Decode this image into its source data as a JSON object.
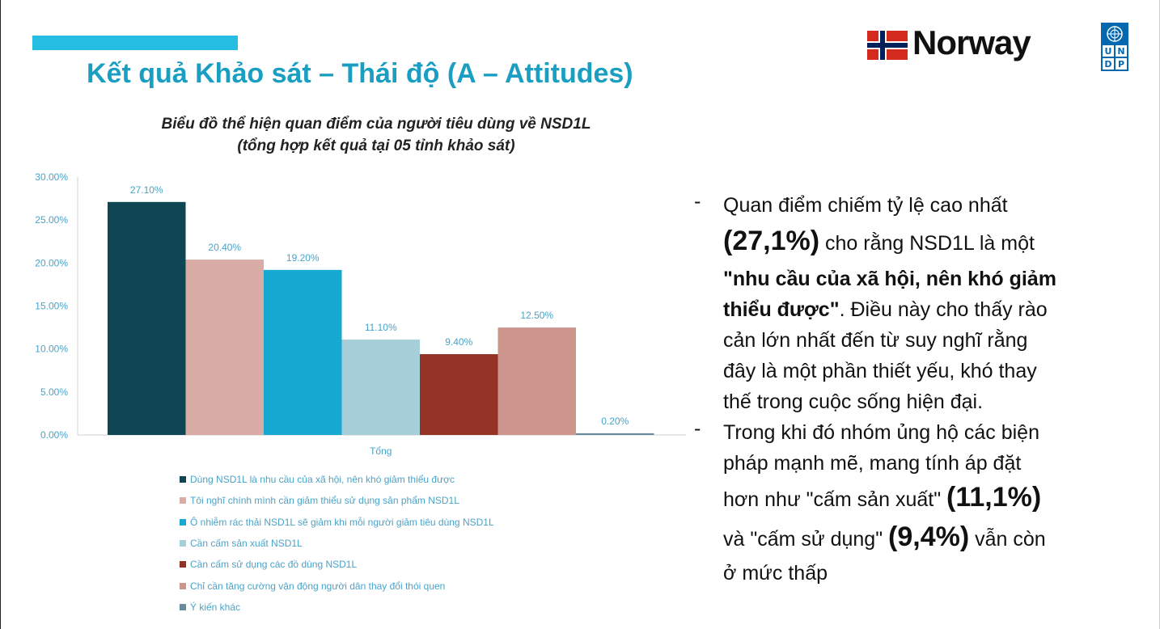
{
  "slide": {
    "title": "Kết quả Khảo sát – Thái độ (A – Attitudes)",
    "accent_color": "#26bde2",
    "title_color": "#1a9fc2"
  },
  "logos": {
    "norway_text": "Norway",
    "undp_letters": [
      "U",
      "N",
      "D",
      "P"
    ]
  },
  "chart_data": {
    "type": "bar",
    "title_line1": "Biểu đồ thể hiện quan điểm của người tiêu dùng về NSD1L",
    "title_line2": "(tổng hợp kết quả tại 05 tỉnh khảo sát)",
    "category": "Tổng",
    "ylim": [
      0,
      30
    ],
    "yticks": [
      0,
      5,
      10,
      15,
      20,
      25,
      30
    ],
    "ytick_labels": [
      "0.00%",
      "5.00%",
      "10.00%",
      "15.00%",
      "20.00%",
      "25.00%",
      "30.00%"
    ],
    "grid": false,
    "legend_position": "bottom",
    "series": [
      {
        "name": "Dùng NSD1L là nhu cầu của xã hội, nên khó giảm thiểu được",
        "value": 27.1,
        "label": "27.10%",
        "color": "#0e4654"
      },
      {
        "name": "Tôi nghĩ chính mình cần giảm thiểu sử dụng sản phẩm NSD1L",
        "value": 20.4,
        "label": "20.40%",
        "color": "#d9aca6"
      },
      {
        "name": "Ô nhiễm rác thải NSD1L sẽ giảm khi mỗi người giảm tiêu dùng NSD1L",
        "value": 19.2,
        "label": "19.20%",
        "color": "#16a9d1"
      },
      {
        "name": "Cần cấm sản xuất NSD1L",
        "value": 11.1,
        "label": "11.10%",
        "color": "#a6cfd9"
      },
      {
        "name": "Cần cấm sử dụng các đồ dùng NSD1L",
        "value": 9.4,
        "label": "9.40%",
        "color": "#923326"
      },
      {
        "name": "Chỉ cần tăng cường vận động người dân thay đổi thói quen",
        "value": 12.5,
        "label": "12.50%",
        "color": "#cc968d"
      },
      {
        "name": "Ý kiến khác",
        "value": 0.2,
        "label": "0.20%",
        "color": "#6a8c9c"
      }
    ]
  },
  "bullets": {
    "b1": {
      "dash": "-",
      "l1": "Quan điểm chiếm tỷ lệ cao nhất",
      "l2_big": "(27,1%)",
      "l2_rest": " cho rằng NSD1L là một",
      "l3_bold": "\"nhu cầu của xã hội, nên khó giảm",
      "l4_bold": "thiểu được\"",
      "l4_rest": ". Điều này cho thấy rào",
      "l5": "cản lớn nhất đến từ suy nghĩ rằng",
      "l6": "đây là một phần thiết yếu, khó thay",
      "l7": "thế trong cuộc sống hiện đại."
    },
    "b2": {
      "dash": "-",
      "l1": "Trong khi đó nhóm ủng hộ các biện",
      "l2": "pháp mạnh mẽ, mang tính áp đặt",
      "l3_text": "hơn như \"cấm sản xuất\" ",
      "l3_big": "(11,1%)",
      "l4_text": "và \"cấm sử dụng\" ",
      "l4_big": "(9,4%)",
      "l4_rest": " vẫn còn",
      "l5": "ở mức thấp"
    }
  }
}
